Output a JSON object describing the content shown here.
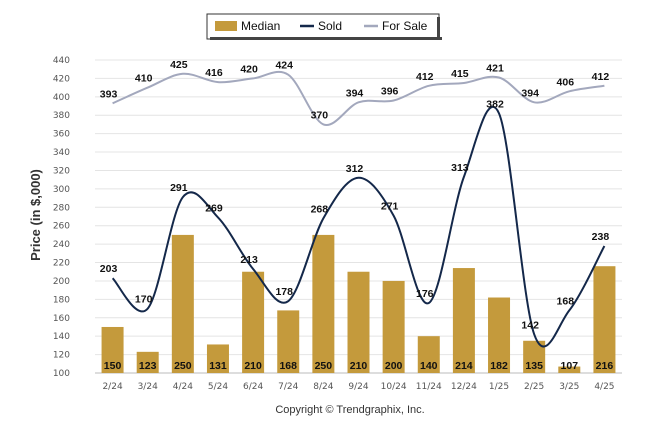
{
  "chart_data": {
    "type": "bar",
    "categories": [
      "2/24",
      "3/24",
      "4/24",
      "5/24",
      "6/24",
      "7/24",
      "8/24",
      "9/24",
      "10/24",
      "11/24",
      "12/24",
      "1/25",
      "2/25",
      "3/25",
      "4/25"
    ],
    "series": [
      {
        "name": "Median",
        "type": "bar",
        "color": "#c49a3c",
        "values": [
          150,
          123,
          250,
          131,
          210,
          168,
          250,
          210,
          200,
          140,
          214,
          182,
          135,
          107,
          216
        ]
      },
      {
        "name": "Sold",
        "type": "line",
        "color": "#14284a",
        "values": [
          203,
          170,
          291,
          269,
          213,
          178,
          268,
          312,
          271,
          176,
          313,
          382,
          142,
          168,
          238
        ]
      },
      {
        "name": "For Sale",
        "type": "line",
        "color": "#a3a8bd",
        "values": [
          393,
          410,
          425,
          416,
          420,
          424,
          370,
          394,
          396,
          412,
          415,
          421,
          394,
          406,
          412
        ]
      }
    ],
    "ylabel": "Price (in $,000)",
    "ylim": [
      100,
      440
    ],
    "yticks": [
      100,
      120,
      140,
      160,
      180,
      200,
      220,
      240,
      260,
      280,
      300,
      320,
      340,
      360,
      380,
      400,
      420,
      440
    ],
    "grid": true,
    "legend_position": "top-center",
    "footer": "Copyright © Trendgraphix, Inc."
  }
}
